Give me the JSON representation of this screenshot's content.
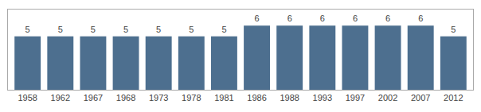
{
  "chart_data": {
    "type": "bar",
    "categories": [
      "1958",
      "1962",
      "1967",
      "1968",
      "1973",
      "1978",
      "1981",
      "1986",
      "1988",
      "1993",
      "1997",
      "2002",
      "2007",
      "2012"
    ],
    "values": [
      5,
      5,
      5,
      5,
      5,
      5,
      5,
      6,
      6,
      6,
      6,
      6,
      6,
      5
    ],
    "color": "#4d6f8f",
    "ylim": [
      0,
      7.5
    ],
    "grid": false,
    "data_labels": true,
    "tick_labels": "x"
  }
}
